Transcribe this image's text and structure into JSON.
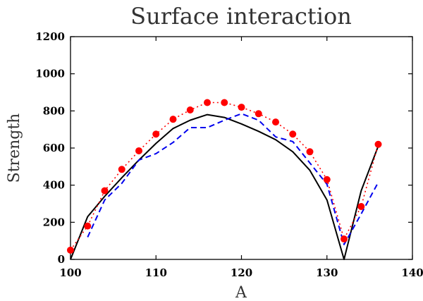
{
  "chart_data": {
    "type": "line",
    "title": "Surface interaction",
    "xlabel": "A",
    "ylabel": "Strength",
    "xlim": [
      100,
      140
    ],
    "ylim": [
      0,
      1200
    ],
    "xticks": [
      100,
      110,
      120,
      130,
      140
    ],
    "yticks": [
      0,
      200,
      400,
      600,
      800,
      1000,
      1200
    ],
    "grid": false,
    "legend": "none",
    "series": [
      {
        "style": "solid",
        "color": "#000000",
        "x": [
          100,
          102,
          104,
          106,
          108,
          110,
          112,
          114,
          116,
          118,
          120,
          122,
          124,
          126,
          128,
          130,
          132,
          134,
          136
        ],
        "y": [
          0,
          230,
          340,
          440,
          535,
          625,
          705,
          750,
          780,
          765,
          730,
          690,
          645,
          580,
          480,
          320,
          0,
          370,
          610
        ]
      },
      {
        "style": "dashed",
        "color": "#0000ee",
        "x": [
          102,
          104,
          106,
          108,
          110,
          112,
          114,
          116,
          118,
          120,
          122,
          124,
          126,
          128,
          130,
          132,
          134,
          136
        ],
        "y": [
          120,
          320,
          410,
          535,
          570,
          630,
          710,
          710,
          750,
          785,
          750,
          660,
          635,
          520,
          405,
          80,
          245,
          415
        ]
      },
      {
        "style": "dotted-markers",
        "color": "#ff0000",
        "x": [
          100,
          102,
          104,
          106,
          108,
          110,
          112,
          114,
          116,
          118,
          120,
          122,
          124,
          126,
          128,
          130,
          132,
          134,
          136
        ],
        "y": [
          50,
          180,
          370,
          485,
          585,
          675,
          755,
          805,
          845,
          845,
          820,
          785,
          740,
          675,
          580,
          430,
          110,
          285,
          620
        ]
      }
    ]
  }
}
